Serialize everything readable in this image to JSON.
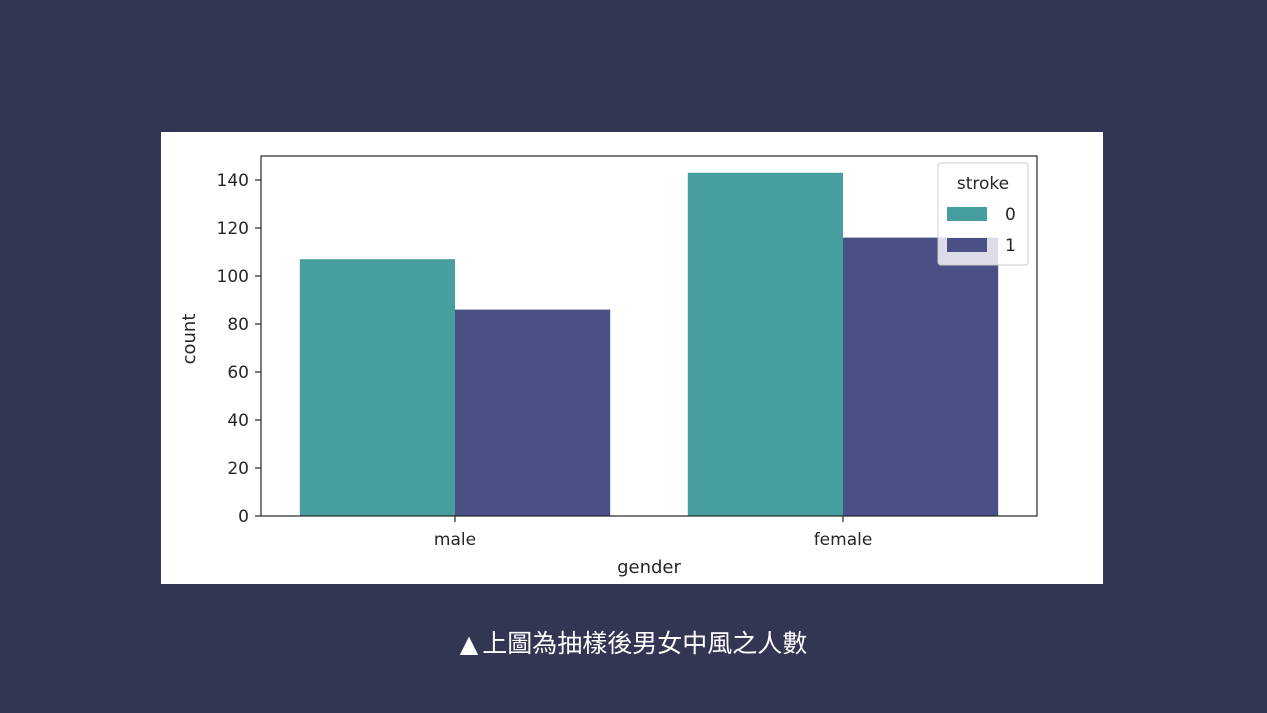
{
  "caption": {
    "marker": "▲",
    "text": "上圖為抽樣後男女中風之人數"
  },
  "chart_data": {
    "type": "bar",
    "categories": [
      "male",
      "female"
    ],
    "series": [
      {
        "name": "0",
        "color": "#479e9f",
        "values": [
          107,
          143
        ]
      },
      {
        "name": "1",
        "color": "#4a5086",
        "values": [
          86,
          116
        ]
      }
    ],
    "xlabel": "gender",
    "ylabel": "count",
    "ylim": [
      0,
      150
    ],
    "yticks": [
      0,
      20,
      40,
      60,
      80,
      100,
      120,
      140
    ],
    "legend": {
      "title": "stroke",
      "placement": "top-right"
    },
    "grid": false
  }
}
